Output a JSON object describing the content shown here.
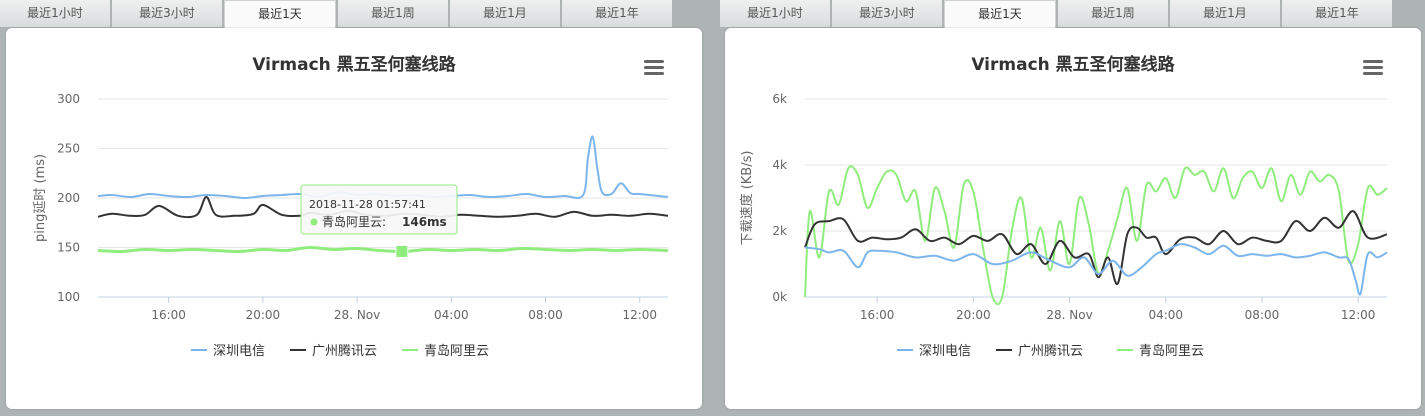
{
  "tabs": [
    "最近1小时",
    "最近3小时",
    "最近1天",
    "最近1周",
    "最近1月",
    "最近1年"
  ],
  "active_tab": 2,
  "colors": {
    "shenzhen": "#7cb5ec",
    "guangzhou": "#333333",
    "qingdao": "#90ed7d"
  },
  "chart_data": [
    {
      "type": "line",
      "title": "Virmach 黑五圣何塞线路",
      "xlabel": "",
      "ylabel": "ping延时 (ms)",
      "ylim": [
        100,
        300
      ],
      "yticks": [
        100,
        150,
        200,
        250,
        300
      ],
      "ytick_labels": [
        "100",
        "150",
        "200",
        "250",
        "300"
      ],
      "xlim": [
        14.5,
        26.6
      ],
      "xticks": [
        16,
        18,
        20,
        22,
        24,
        26
      ],
      "xtick_labels": [
        "16:00",
        "20:00",
        "28. Nov",
        "04:00",
        "08:00",
        "12:00"
      ],
      "legend_position": "bottom-center",
      "grid": true,
      "series": [
        {
          "name": "深圳电信",
          "color": "#7cb5ec",
          "x": [
            14.5,
            14.8,
            15.2,
            15.6,
            16.0,
            16.4,
            16.8,
            17.2,
            17.6,
            18.0,
            18.4,
            18.8,
            19.2,
            19.6,
            20.0,
            20.4,
            20.8,
            21.2,
            21.6,
            22.0,
            22.4,
            22.8,
            23.2,
            23.6,
            24.0,
            24.4,
            24.8,
            24.9,
            25.0,
            25.1,
            25.2,
            25.4,
            25.6,
            25.8,
            26.0,
            26.4,
            26.6
          ],
          "values": [
            202,
            203,
            201,
            204,
            202,
            201,
            203,
            202,
            200,
            202,
            203,
            204,
            201,
            206,
            203,
            204,
            202,
            203,
            201,
            202,
            203,
            201,
            202,
            204,
            201,
            202,
            203,
            240,
            262,
            230,
            206,
            204,
            215,
            205,
            204,
            202,
            201
          ]
        },
        {
          "name": "广州腾讯云",
          "color": "#333333",
          "x": [
            14.5,
            14.8,
            15.2,
            15.5,
            15.8,
            16.2,
            16.6,
            16.8,
            17.0,
            17.4,
            17.8,
            18.0,
            18.4,
            18.8,
            19.0,
            19.4,
            19.8,
            20.2,
            20.6,
            21.0,
            21.4,
            21.8,
            22.2,
            22.6,
            23.0,
            23.4,
            23.8,
            24.2,
            24.6,
            25.0,
            25.4,
            25.8,
            26.2,
            26.6
          ],
          "values": [
            181,
            184,
            182,
            183,
            192,
            182,
            183,
            201,
            183,
            182,
            184,
            193,
            183,
            182,
            185,
            183,
            187,
            183,
            182,
            184,
            183,
            181,
            183,
            182,
            181,
            182,
            184,
            181,
            186,
            182,
            183,
            182,
            184,
            182
          ]
        },
        {
          "name": "青岛阿里云",
          "color": "#90ed7d",
          "x": [
            14.5,
            15.0,
            15.5,
            16.0,
            16.5,
            17.0,
            17.5,
            18.0,
            18.5,
            19.0,
            19.5,
            20.0,
            20.5,
            21.0,
            21.5,
            22.0,
            22.5,
            23.0,
            23.5,
            24.0,
            24.5,
            25.0,
            25.5,
            26.0,
            26.6
          ],
          "values": [
            147,
            146,
            148,
            147,
            148,
            147,
            146,
            148,
            147,
            150,
            148,
            149,
            147,
            146,
            148,
            147,
            148,
            147,
            149,
            148,
            147,
            148,
            147,
            148,
            147
          ]
        }
      ],
      "tooltip": {
        "time": "2018-11-28 01:57:41",
        "series": "青岛阿里云",
        "value": "146ms",
        "x": 20.95,
        "y": 146
      }
    },
    {
      "type": "line",
      "title": "Virmach 黑五圣何塞线路",
      "xlabel": "",
      "ylabel": "下载速度 (KB/s)",
      "ylim": [
        0,
        6000
      ],
      "yticks": [
        0,
        2000,
        4000,
        6000
      ],
      "ytick_labels": [
        "0k",
        "2k",
        "4k",
        "6k"
      ],
      "xlim": [
        14.5,
        26.6
      ],
      "xticks": [
        16,
        18,
        20,
        22,
        24,
        26
      ],
      "xtick_labels": [
        "16:00",
        "20:00",
        "28. Nov",
        "04:00",
        "08:00",
        "12:00"
      ],
      "legend_position": "bottom-center",
      "grid": true,
      "series": [
        {
          "name": "深圳电信",
          "color": "#7cb5ec",
          "x": [
            14.5,
            14.8,
            15.0,
            15.3,
            15.6,
            15.8,
            16.0,
            16.4,
            16.8,
            17.2,
            17.6,
            18.0,
            18.4,
            18.8,
            19.2,
            19.6,
            20.0,
            20.3,
            20.6,
            20.9,
            21.2,
            21.5,
            21.8,
            22.0,
            22.3,
            22.6,
            22.9,
            23.2,
            23.5,
            23.8,
            24.1,
            24.4,
            24.7,
            25.0,
            25.3,
            25.6,
            25.8,
            25.95,
            26.05,
            26.2,
            26.4,
            26.6
          ],
          "values": [
            1500,
            1450,
            1350,
            1400,
            900,
            1350,
            1400,
            1350,
            1200,
            1250,
            1100,
            1300,
            1000,
            1100,
            1350,
            1100,
            900,
            1200,
            700,
            1100,
            650,
            900,
            1300,
            1400,
            1600,
            1500,
            1300,
            1550,
            1250,
            1300,
            1250,
            1300,
            1200,
            1250,
            1350,
            1200,
            1150,
            500,
            100,
            1300,
            1200,
            1350
          ]
        },
        {
          "name": "广州腾讯云",
          "color": "#333333",
          "x": [
            14.5,
            14.7,
            15.0,
            15.3,
            15.6,
            15.9,
            16.2,
            16.5,
            16.8,
            17.1,
            17.4,
            17.7,
            18.0,
            18.3,
            18.6,
            18.9,
            19.2,
            19.5,
            19.8,
            20.1,
            20.4,
            20.6,
            20.8,
            21.0,
            21.2,
            21.4,
            21.6,
            21.8,
            22.0,
            22.3,
            22.6,
            22.9,
            23.2,
            23.5,
            23.8,
            24.1,
            24.4,
            24.7,
            25.0,
            25.3,
            25.6,
            25.9,
            26.2,
            26.6
          ],
          "values": [
            1500,
            2200,
            2300,
            2350,
            1700,
            1800,
            1750,
            1800,
            2050,
            1700,
            1800,
            1600,
            1850,
            1700,
            1900,
            1300,
            1600,
            1000,
            1700,
            1200,
            1300,
            600,
            1200,
            400,
            1900,
            2100,
            1800,
            1800,
            1300,
            1750,
            1800,
            1600,
            2000,
            1600,
            1800,
            1700,
            1700,
            2300,
            2000,
            2400,
            2100,
            2600,
            1800,
            1900
          ]
        },
        {
          "name": "青岛阿里云",
          "color": "#90ed7d",
          "x": [
            14.5,
            14.6,
            14.8,
            15.0,
            15.2,
            15.4,
            15.6,
            15.8,
            16.0,
            16.2,
            16.4,
            16.6,
            16.8,
            17.0,
            17.2,
            17.4,
            17.6,
            17.8,
            18.0,
            18.2,
            18.4,
            18.6,
            18.8,
            19.0,
            19.2,
            19.4,
            19.6,
            19.8,
            20.0,
            20.2,
            20.4,
            20.6,
            20.8,
            21.0,
            21.2,
            21.4,
            21.6,
            21.8,
            22.0,
            22.2,
            22.4,
            22.6,
            22.8,
            23.0,
            23.2,
            23.4,
            23.6,
            23.8,
            24.0,
            24.2,
            24.4,
            24.6,
            24.8,
            25.0,
            25.2,
            25.4,
            25.6,
            25.8,
            26.0,
            26.2,
            26.4,
            26.6
          ],
          "values": [
            0,
            2600,
            1200,
            3200,
            2800,
            3900,
            3700,
            2700,
            3300,
            3800,
            3700,
            2900,
            3200,
            1700,
            3300,
            2600,
            1500,
            3400,
            3200,
            1500,
            0,
            0,
            2000,
            3000,
            1200,
            2100,
            800,
            2300,
            1000,
            3000,
            2200,
            700,
            1400,
            2400,
            3300,
            1700,
            3400,
            3200,
            3600,
            3000,
            3900,
            3700,
            3800,
            3200,
            3900,
            3000,
            3600,
            3800,
            3300,
            3900,
            2900,
            3700,
            3100,
            3800,
            3500,
            3700,
            3200,
            1100,
            1600,
            3300,
            3100,
            3300
          ]
        }
      ]
    }
  ]
}
